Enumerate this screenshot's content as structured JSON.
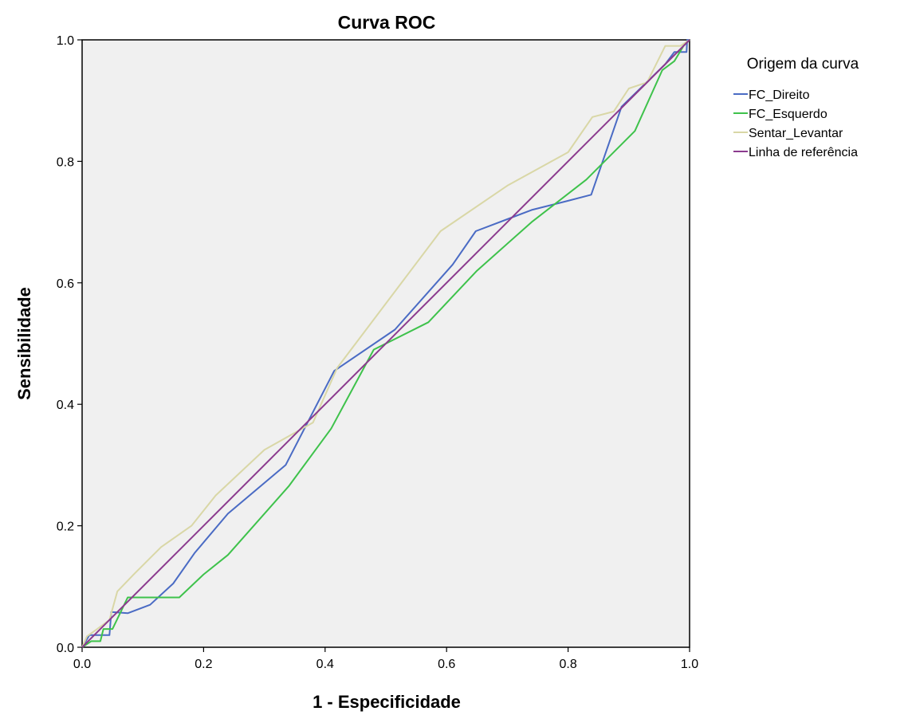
{
  "chart_data": {
    "type": "line",
    "title": "Curva ROC",
    "xlabel": "1 - Especificidade",
    "ylabel": "Sensibilidade",
    "xlim": [
      0,
      1
    ],
    "ylim": [
      0,
      1
    ],
    "x_ticks": [
      "0.0",
      "0.2",
      "0.4",
      "0.6",
      "0.8",
      "1.0"
    ],
    "y_ticks": [
      "0.0",
      "0.2",
      "0.4",
      "0.6",
      "0.8",
      "1.0"
    ],
    "grid": false,
    "plot_background": "#f0f0f0",
    "legend": {
      "title": "Origem da curva",
      "position": "right"
    },
    "series": [
      {
        "name": "FC_Direito",
        "color": "#4a6bc4",
        "points": [
          [
            0,
            0
          ],
          [
            0.012,
            0.02
          ],
          [
            0.02,
            0.02
          ],
          [
            0.027,
            0.02
          ],
          [
            0.045,
            0.02
          ],
          [
            0.048,
            0.058
          ],
          [
            0.075,
            0.056
          ],
          [
            0.112,
            0.07
          ],
          [
            0.15,
            0.105
          ],
          [
            0.185,
            0.155
          ],
          [
            0.24,
            0.22
          ],
          [
            0.335,
            0.3
          ],
          [
            0.415,
            0.455
          ],
          [
            0.515,
            0.523
          ],
          [
            0.61,
            0.63
          ],
          [
            0.648,
            0.685
          ],
          [
            0.74,
            0.72
          ],
          [
            0.8,
            0.735
          ],
          [
            0.838,
            0.745
          ],
          [
            0.888,
            0.89
          ],
          [
            0.96,
            0.96
          ],
          [
            0.975,
            0.98
          ],
          [
            0.995,
            0.98
          ],
          [
            0.996,
            1.0
          ],
          [
            1.0,
            1.0
          ]
        ]
      },
      {
        "name": "FC_Esquerdo",
        "color": "#3ec24b",
        "points": [
          [
            0,
            0
          ],
          [
            0.015,
            0.01
          ],
          [
            0.03,
            0.01
          ],
          [
            0.035,
            0.03
          ],
          [
            0.05,
            0.03
          ],
          [
            0.075,
            0.082
          ],
          [
            0.12,
            0.082
          ],
          [
            0.16,
            0.082
          ],
          [
            0.2,
            0.12
          ],
          [
            0.24,
            0.152
          ],
          [
            0.34,
            0.265
          ],
          [
            0.41,
            0.36
          ],
          [
            0.48,
            0.49
          ],
          [
            0.57,
            0.535
          ],
          [
            0.65,
            0.62
          ],
          [
            0.74,
            0.7
          ],
          [
            0.83,
            0.77
          ],
          [
            0.91,
            0.85
          ],
          [
            0.955,
            0.95
          ],
          [
            0.975,
            0.965
          ],
          [
            0.99,
            0.99
          ],
          [
            1.0,
            1.0
          ]
        ]
      },
      {
        "name": "Sentar_Levantar",
        "color": "#d9d7a6",
        "points": [
          [
            0,
            0
          ],
          [
            0.008,
            0.018
          ],
          [
            0.025,
            0.03
          ],
          [
            0.045,
            0.045
          ],
          [
            0.058,
            0.092
          ],
          [
            0.085,
            0.12
          ],
          [
            0.13,
            0.165
          ],
          [
            0.18,
            0.2
          ],
          [
            0.22,
            0.25
          ],
          [
            0.3,
            0.325
          ],
          [
            0.38,
            0.37
          ],
          [
            0.42,
            0.46
          ],
          [
            0.59,
            0.685
          ],
          [
            0.7,
            0.76
          ],
          [
            0.8,
            0.815
          ],
          [
            0.84,
            0.873
          ],
          [
            0.875,
            0.882
          ],
          [
            0.9,
            0.92
          ],
          [
            0.93,
            0.93
          ],
          [
            0.96,
            0.99
          ],
          [
            0.985,
            0.99
          ],
          [
            1.0,
            1.0
          ]
        ]
      },
      {
        "name": "Linha de referência",
        "color": "#8b3a8e",
        "points": [
          [
            0,
            0
          ],
          [
            1,
            1
          ]
        ]
      }
    ]
  }
}
